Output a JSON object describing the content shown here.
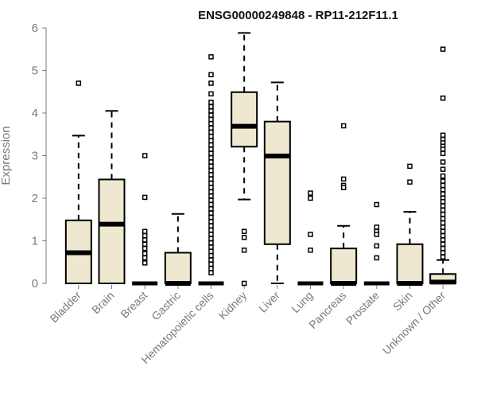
{
  "chart_data": {
    "type": "boxplot",
    "title": "ENSG00000249848 - RP11-212F11.1",
    "xlabel": "",
    "ylabel": "Expression",
    "ylim": [
      0,
      6
    ],
    "yticks": [
      0,
      1,
      2,
      3,
      4,
      5,
      6
    ],
    "grid": false,
    "legend": "none",
    "colors": {
      "box_fill": "#efe8d0",
      "line": "#000000",
      "axis_text": "#7a7a7a"
    },
    "categories": [
      "Bladder",
      "Brain",
      "Breast",
      "Gastric",
      "Hematopoietic cells",
      "Kidney",
      "Liver",
      "Lung",
      "Pancreas",
      "Prostate",
      "Skin",
      "Unknown / Other"
    ],
    "boxes": [
      {
        "whisker_low": 0,
        "q1": 0,
        "median": 0.72,
        "q3": 1.48,
        "whisker_high": 3.47,
        "outliers": [
          4.7
        ]
      },
      {
        "whisker_low": 0,
        "q1": 0,
        "median": 1.39,
        "q3": 2.44,
        "whisker_high": 4.05,
        "outliers": []
      },
      {
        "whisker_low": 0,
        "q1": 0,
        "median": 0,
        "q3": 0,
        "whisker_high": 0,
        "outliers": [
          3.0,
          2.02,
          1.22,
          1.12,
          1.02,
          0.92,
          0.82,
          0.7,
          0.6,
          0.48
        ]
      },
      {
        "whisker_low": 0,
        "q1": 0,
        "median": 0,
        "q3": 0.72,
        "whisker_high": 1.63,
        "outliers": []
      },
      {
        "whisker_low": 0,
        "q1": 0,
        "median": 0,
        "q3": 0,
        "whisker_high": 0,
        "outliers": [
          5.32,
          4.9,
          4.7,
          4.45,
          4.25,
          4.15,
          4.05,
          3.95,
          3.85,
          3.75,
          3.65,
          3.55,
          3.45,
          3.35,
          3.25,
          3.15,
          3.05,
          2.95,
          2.85,
          2.75,
          2.65,
          2.55,
          2.45,
          2.35,
          2.25,
          2.15,
          2.05,
          1.95,
          1.85,
          1.75,
          1.65,
          1.55,
          1.45,
          1.35,
          1.25,
          1.15,
          1.05,
          0.95,
          0.85,
          0.75,
          0.65,
          0.55,
          0.45,
          0.35,
          0.25
        ]
      },
      {
        "whisker_low": 1.97,
        "q1": 3.21,
        "median": 3.69,
        "q3": 4.49,
        "whisker_high": 5.88,
        "outliers": [
          1.22,
          1.08,
          0.78,
          0.0
        ]
      },
      {
        "whisker_low": 0,
        "q1": 0.92,
        "median": 2.99,
        "q3": 3.8,
        "whisker_high": 4.72,
        "outliers": []
      },
      {
        "whisker_low": 0,
        "q1": 0,
        "median": 0,
        "q3": 0,
        "whisker_high": 0,
        "outliers": [
          2.12,
          2.0,
          1.15,
          0.78
        ]
      },
      {
        "whisker_low": 0,
        "q1": 0,
        "median": 0,
        "q3": 0.82,
        "whisker_high": 1.35,
        "outliers": [
          3.7,
          2.45,
          2.3,
          2.25
        ]
      },
      {
        "whisker_low": 0,
        "q1": 0,
        "median": 0,
        "q3": 0,
        "whisker_high": 0,
        "outliers": [
          1.85,
          1.32,
          1.22,
          1.15,
          0.88,
          0.6
        ]
      },
      {
        "whisker_low": 0,
        "q1": 0,
        "median": 0,
        "q3": 0.92,
        "whisker_high": 1.68,
        "outliers": [
          2.75,
          2.38
        ]
      },
      {
        "whisker_low": 0,
        "q1": 0,
        "median": 0.03,
        "q3": 0.22,
        "whisker_high": 0.55,
        "outliers": [
          5.5,
          4.35,
          3.48,
          3.38,
          3.3,
          3.22,
          3.15,
          3.05,
          2.85,
          2.68,
          2.52,
          2.4,
          2.3,
          2.2,
          2.1,
          2.0,
          1.92,
          1.82,
          1.72,
          1.62,
          1.52,
          1.42,
          1.32,
          1.22,
          1.12,
          1.02,
          0.92,
          0.82,
          0.72,
          0.62
        ]
      }
    ]
  }
}
